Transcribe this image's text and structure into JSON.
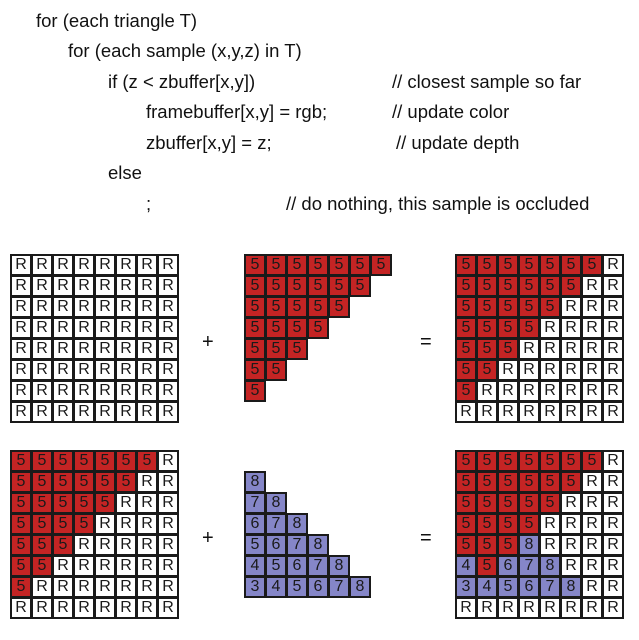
{
  "colors": {
    "red": "#c42424",
    "blue": "#8586c8",
    "white": "#ffffff",
    "line": "#1a1a1a"
  },
  "code": [
    "for (each triangle T)",
    "for (each sample (x,y,z) in T)",
    "if (z < zbuffer[x,y])",
    "// closest sample so far",
    "framebuffer[x,y] = rgb;",
    "// update color",
    "zbuffer[x,y] = z;",
    "// update depth",
    "else",
    ";",
    "// do nothing, this sample is occluded"
  ],
  "operators": {
    "plus": "+",
    "equals": "="
  },
  "grids": [
    [
      "RRRRRRRR",
      "RRRRRRRR",
      "RRRRRRRR",
      "RRRRRRRR",
      "RRRRRRRR",
      "RRRRRRRR",
      "RRRRRRRR",
      "RRRRRRRR"
    ],
    [
      "rrrrrrr.",
      "rrrrrr..",
      "rrrrr...",
      "rrrr....",
      "rrr.....",
      "rr......",
      "r.......",
      "........"
    ],
    [
      "rrrrrrrR",
      "rrrrrrRR",
      "rrrrrRRR",
      "rrrrRRRR",
      "rrrRRRRR",
      "rrRRRRRR",
      "rRRRRRRR",
      "RRRRRRRR"
    ],
    [
      "rrrrrrrR",
      "rrrrrrRR",
      "rrrrrRRR",
      "rrrrRRRR",
      "rrrRRRRR",
      "rrRRRRRR",
      "rRRRRRRR",
      "RRRRRRRR"
    ],
    [
      "........",
      "b.......",
      "bb......",
      "bbb.....",
      "bbbb....",
      "bbbbb...",
      "bbbbbb..",
      "........"
    ],
    [
      "rrrrrrrR",
      "rrrrrrRR",
      "rrrrrRRR",
      "rrrrRRRR",
      "rrrbRRRR",
      "brbbbRRR",
      "bbbbbbRR",
      "RRRRRRRR"
    ]
  ],
  "grid_digits": [
    [
      "........",
      "........",
      "........",
      "........",
      "........",
      "........",
      "........",
      "........"
    ],
    [
      "5555555.",
      "555555..",
      "55555...",
      "5555....",
      "555.....",
      "55......",
      "5.......",
      "........"
    ],
    [
      "5555555.",
      "555555..",
      "55555...",
      "5555....",
      "555.....",
      "55......",
      "5.......",
      "........"
    ],
    [
      "5555555.",
      "555555..",
      "55555...",
      "5555....",
      "555.....",
      "55......",
      "5.......",
      "........"
    ],
    [
      "........",
      "8.......",
      "78......",
      "678.....",
      "5678....",
      "45678...",
      "345678..",
      "........"
    ],
    [
      "5555555.",
      "555555..",
      "55555...",
      "5555....",
      "5558....",
      "45678...",
      "345678..",
      "........"
    ]
  ]
}
